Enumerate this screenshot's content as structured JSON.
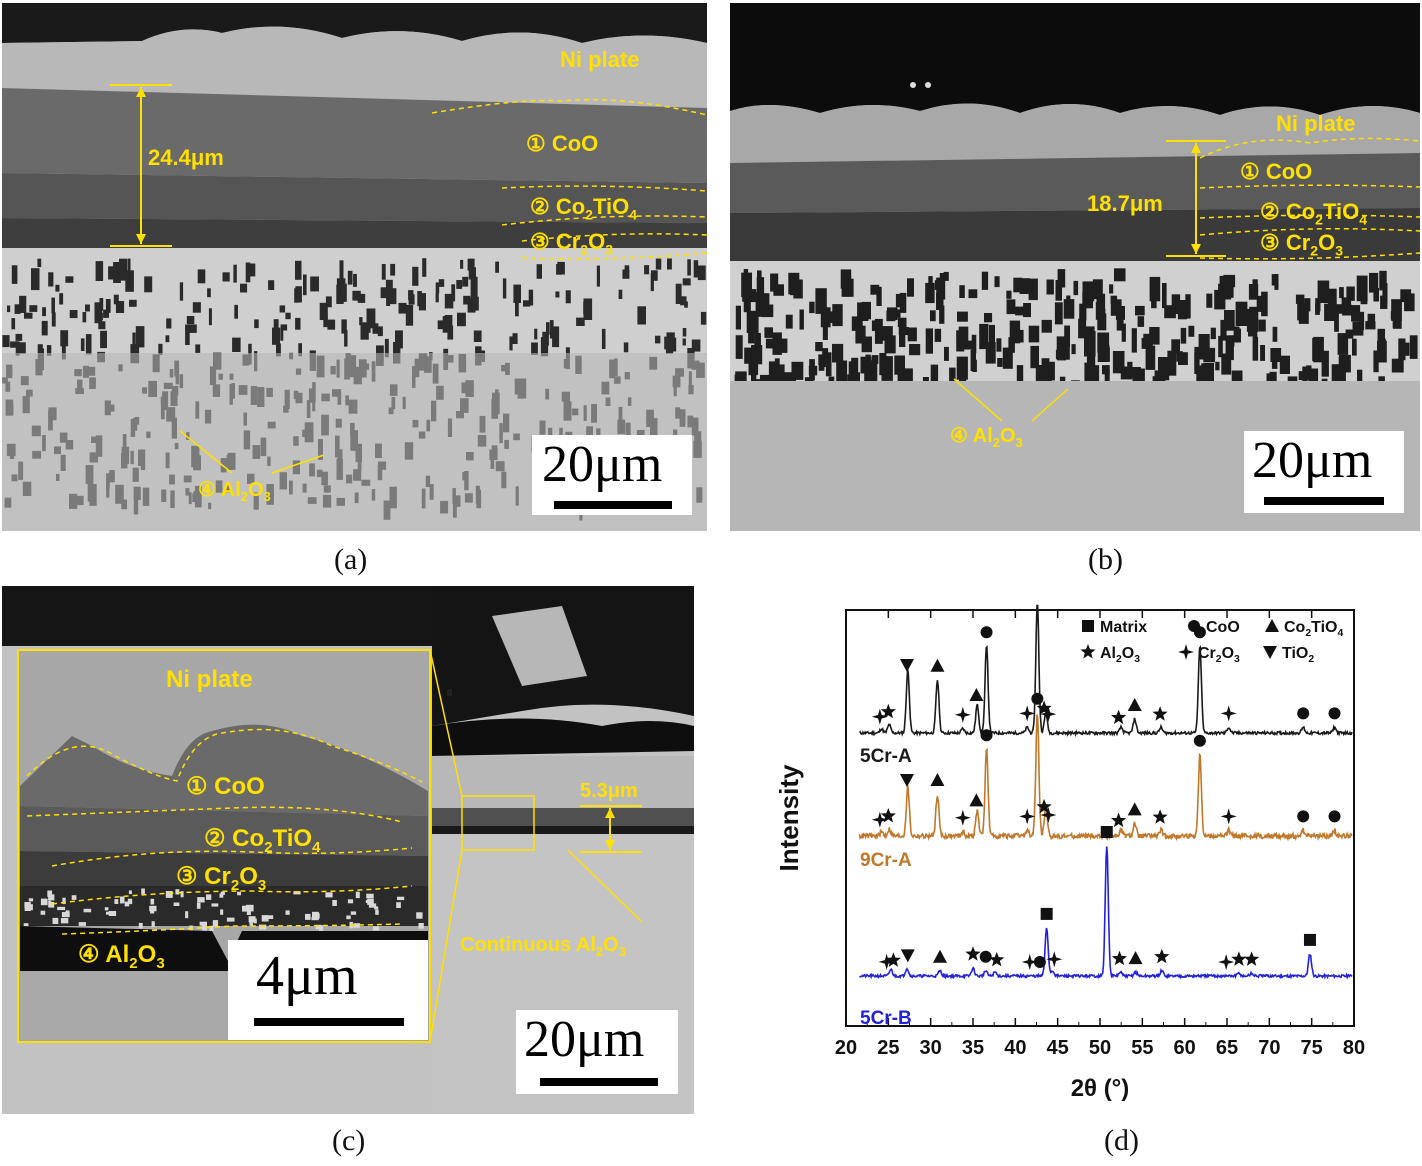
{
  "panels": {
    "a": {
      "caption": "(a)",
      "ni_plate": "Ni plate",
      "thickness": "24.4μm",
      "layer1": "① CoO",
      "layer2_pre": "② Co",
      "layer2_sub": "2",
      "layer2_mid": "TiO",
      "layer2_sub2": "4",
      "layer3_pre": "③ Cr",
      "layer3_sub": "2",
      "layer3_mid": "O",
      "layer3_sub2": "3",
      "layer4_pre": "④ Al",
      "layer4_sub": "2",
      "layer4_mid": "O",
      "layer4_sub2": "3",
      "scale": "20μm"
    },
    "b": {
      "caption": "(b)",
      "ni_plate": "Ni plate",
      "thickness": "18.7μm",
      "layer1": "① CoO",
      "layer2_pre": "② Co",
      "layer2_sub": "2",
      "layer2_mid": "TiO",
      "layer2_sub2": "4",
      "layer3_pre": "③ Cr",
      "layer3_sub": "2",
      "layer3_mid": "O",
      "layer3_sub2": "3",
      "layer4_pre": "④ Al",
      "layer4_sub": "2",
      "layer4_mid": "O",
      "layer4_sub2": "3",
      "scale": "20μm"
    },
    "c": {
      "caption": "(c)",
      "ni_plate": "Ni plate",
      "thickness": "5.3μm",
      "layer1": "① CoO",
      "layer2_pre": "② Co",
      "layer2_sub": "2",
      "layer2_mid": "TiO",
      "layer2_sub2": "4",
      "layer3_pre": "③ Cr",
      "layer3_sub": "2",
      "layer3_mid": "O",
      "layer3_sub2": "3",
      "layer4_pre": "④ Al",
      "layer4_sub": "2",
      "layer4_mid": "O",
      "layer4_sub2": "3",
      "continuous_pre": "Continuous Al",
      "continuous_sub": "2",
      "continuous_mid": "O",
      "continuous_sub2": "3",
      "inset_scale": "4μm",
      "scale": "20μm"
    },
    "d": {
      "caption": "(d)"
    }
  },
  "colors": {
    "annotation": "#ffe000",
    "series_5CrA": "#1a1a1a",
    "series_9CrA": "#c0782a",
    "series_5CrB": "#2222dd"
  },
  "chart_data": {
    "type": "line",
    "xlabel": "2θ (°)",
    "ylabel": "Intensity",
    "xlim": [
      20,
      80
    ],
    "x_ticks": [
      "20",
      "25",
      "30",
      "35",
      "40",
      "45",
      "50",
      "55",
      "60",
      "65",
      "70",
      "75",
      "80"
    ],
    "legend": [
      {
        "symbol": "square",
        "label": "Matrix"
      },
      {
        "symbol": "circle",
        "label": "CoO"
      },
      {
        "symbol": "triangle-up",
        "label_pre": "Co",
        "label_sub": "2",
        "label_mid": "TiO",
        "label_sub2": "4"
      },
      {
        "symbol": "star",
        "label_pre": "Al",
        "label_sub": "2",
        "label_mid": "O",
        "label_sub2": "3"
      },
      {
        "symbol": "plus-star",
        "label_pre": "Cr",
        "label_sub": "2",
        "label_mid": "O",
        "label_sub2": "3"
      },
      {
        "symbol": "triangle-down",
        "label_pre": "TiO",
        "label_sub": "2"
      }
    ],
    "series": [
      {
        "name": "5Cr-A",
        "baseline": 0.8,
        "peaks": [
          [
            24.2,
            0.03
          ],
          [
            25.1,
            0.06
          ],
          [
            27.3,
            0.45
          ],
          [
            30.8,
            0.38
          ],
          [
            33.8,
            0.03
          ],
          [
            35.5,
            0.2
          ],
          [
            36.6,
            0.62
          ],
          [
            41.4,
            0.04
          ],
          [
            42.6,
            0.93
          ],
          [
            43.6,
            0.14
          ],
          [
            52.5,
            0.04
          ],
          [
            54.1,
            0.1
          ],
          [
            57.2,
            0.04
          ],
          [
            61.8,
            0.62
          ],
          [
            65.2,
            0.04
          ],
          [
            74.0,
            0.04
          ],
          [
            77.7,
            0.04
          ]
        ],
        "markers": [
          [
            24.0,
            "plus-star"
          ],
          [
            25.0,
            "star"
          ],
          [
            27.2,
            "triangle-down"
          ],
          [
            30.8,
            "triangle-up"
          ],
          [
            33.8,
            "plus-star"
          ],
          [
            35.4,
            "triangle-up"
          ],
          [
            36.6,
            "circle"
          ],
          [
            41.4,
            "plus-star"
          ],
          [
            42.6,
            "circle"
          ],
          [
            43.4,
            "star"
          ],
          [
            43.9,
            "plus-star"
          ],
          [
            52.2,
            "star"
          ],
          [
            54.1,
            "triangle-up"
          ],
          [
            57.1,
            "star"
          ],
          [
            61.8,
            "circle"
          ],
          [
            65.2,
            "plus-star"
          ],
          [
            74.0,
            "circle"
          ],
          [
            77.7,
            "circle"
          ]
        ]
      },
      {
        "name": "9Cr-A",
        "baseline": 0.53,
        "peaks": [
          [
            24.2,
            0.03
          ],
          [
            25.1,
            0.05
          ],
          [
            27.3,
            0.35
          ],
          [
            30.8,
            0.3
          ],
          [
            33.8,
            0.03
          ],
          [
            35.5,
            0.18
          ],
          [
            36.6,
            0.62
          ],
          [
            41.4,
            0.04
          ],
          [
            42.6,
            0.88
          ],
          [
            43.6,
            0.2
          ],
          [
            52.5,
            0.04
          ],
          [
            54.1,
            0.09
          ],
          [
            57.2,
            0.04
          ],
          [
            61.8,
            0.58
          ],
          [
            65.2,
            0.04
          ],
          [
            74.0,
            0.04
          ],
          [
            77.7,
            0.04
          ]
        ],
        "markers": [
          [
            24.0,
            "plus-star"
          ],
          [
            25.0,
            "star"
          ],
          [
            27.2,
            "triangle-down"
          ],
          [
            30.8,
            "triangle-up"
          ],
          [
            33.8,
            "plus-star"
          ],
          [
            35.4,
            "triangle-up"
          ],
          [
            36.6,
            "circle"
          ],
          [
            41.4,
            "plus-star"
          ],
          [
            42.6,
            "circle"
          ],
          [
            43.4,
            "star"
          ],
          [
            43.9,
            "plus-star"
          ],
          [
            52.2,
            "star"
          ],
          [
            54.1,
            "triangle-up"
          ],
          [
            57.1,
            "star"
          ],
          [
            61.8,
            "circle"
          ],
          [
            65.2,
            "plus-star"
          ],
          [
            74.0,
            "circle"
          ],
          [
            77.7,
            "circle"
          ]
        ]
      },
      {
        "name": "5Cr-B",
        "baseline": 0.0,
        "peaks": [
          [
            25.3,
            0.05
          ],
          [
            27.2,
            0.06
          ],
          [
            31.1,
            0.04
          ],
          [
            35.0,
            0.06
          ],
          [
            36.5,
            0.04
          ],
          [
            37.6,
            0.03
          ],
          [
            43.7,
            0.37
          ],
          [
            44.4,
            0.04
          ],
          [
            50.8,
            1.0
          ],
          [
            52.4,
            0.03
          ],
          [
            54.2,
            0.03
          ],
          [
            57.3,
            0.04
          ],
          [
            66.4,
            0.02
          ],
          [
            67.9,
            0.02
          ],
          [
            74.8,
            0.17
          ]
        ],
        "markers": [
          [
            24.8,
            "plus-star"
          ],
          [
            25.6,
            "star"
          ],
          [
            27.3,
            "triangle-down"
          ],
          [
            31.1,
            "triangle-up"
          ],
          [
            35.0,
            "star"
          ],
          [
            36.5,
            "circle"
          ],
          [
            37.8,
            "star"
          ],
          [
            41.7,
            "plus-star"
          ],
          [
            42.9,
            "circle"
          ],
          [
            43.7,
            "square"
          ],
          [
            44.6,
            "plus-star"
          ],
          [
            50.8,
            "square"
          ],
          [
            52.3,
            "star"
          ],
          [
            54.2,
            "triangle-up"
          ],
          [
            57.3,
            "star"
          ],
          [
            64.9,
            "plus-star"
          ],
          [
            66.4,
            "star"
          ],
          [
            67.9,
            "star"
          ],
          [
            74.8,
            "square"
          ]
        ]
      }
    ]
  }
}
